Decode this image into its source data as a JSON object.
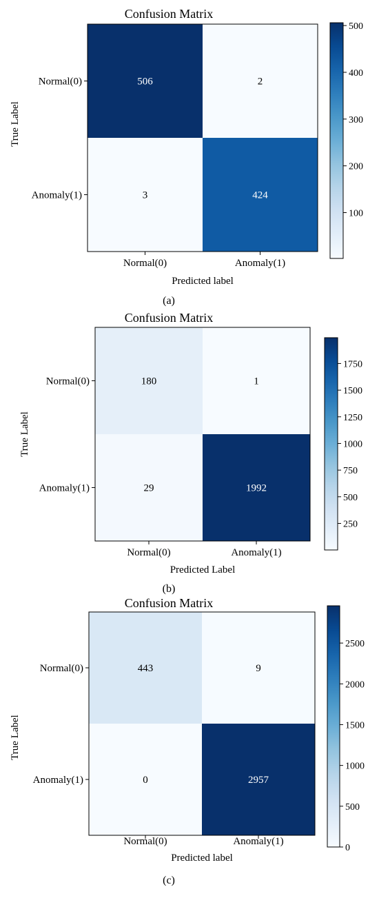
{
  "chart_data": [
    {
      "type": "heatmap",
      "panel_label": "(a)",
      "title": "Confusion Matrix",
      "xlabel": "Predicted label",
      "ylabel": "True Label",
      "x_categories": [
        "Normal(0)",
        "Anomaly(1)"
      ],
      "y_categories": [
        "Normal(0)",
        "Anomaly(1)"
      ],
      "values": [
        [
          506,
          2
        ],
        [
          3,
          424
        ]
      ],
      "colorbar": {
        "min": 2,
        "max": 506,
        "ticks": [
          100,
          200,
          300,
          400,
          500
        ]
      },
      "colormap": "Blues"
    },
    {
      "type": "heatmap",
      "panel_label": "(b)",
      "title": "Confusion Matrix",
      "xlabel": "Predicted Label",
      "ylabel": "True Label",
      "x_categories": [
        "Normal(0)",
        "Anomaly(1)"
      ],
      "y_categories": [
        "Normal(0)",
        "Anomaly(1)"
      ],
      "values": [
        [
          180,
          1
        ],
        [
          29,
          1992
        ]
      ],
      "colorbar": {
        "min": 1,
        "max": 1992,
        "ticks": [
          250,
          500,
          750,
          1000,
          1250,
          1500,
          1750
        ]
      },
      "colormap": "Blues"
    },
    {
      "type": "heatmap",
      "panel_label": "(c)",
      "title": "Confusion Matrix",
      "xlabel": "Predicted label",
      "ylabel": "True Label",
      "x_categories": [
        "Normal(0)",
        "Anomaly(1)"
      ],
      "y_categories": [
        "Normal(0)",
        "Anomaly(1)"
      ],
      "values": [
        [
          443,
          9
        ],
        [
          0,
          2957
        ]
      ],
      "colorbar": {
        "min": 0,
        "max": 2957,
        "ticks": [
          0,
          500,
          1000,
          1500,
          2000,
          2500
        ]
      },
      "colormap": "Blues"
    }
  ]
}
